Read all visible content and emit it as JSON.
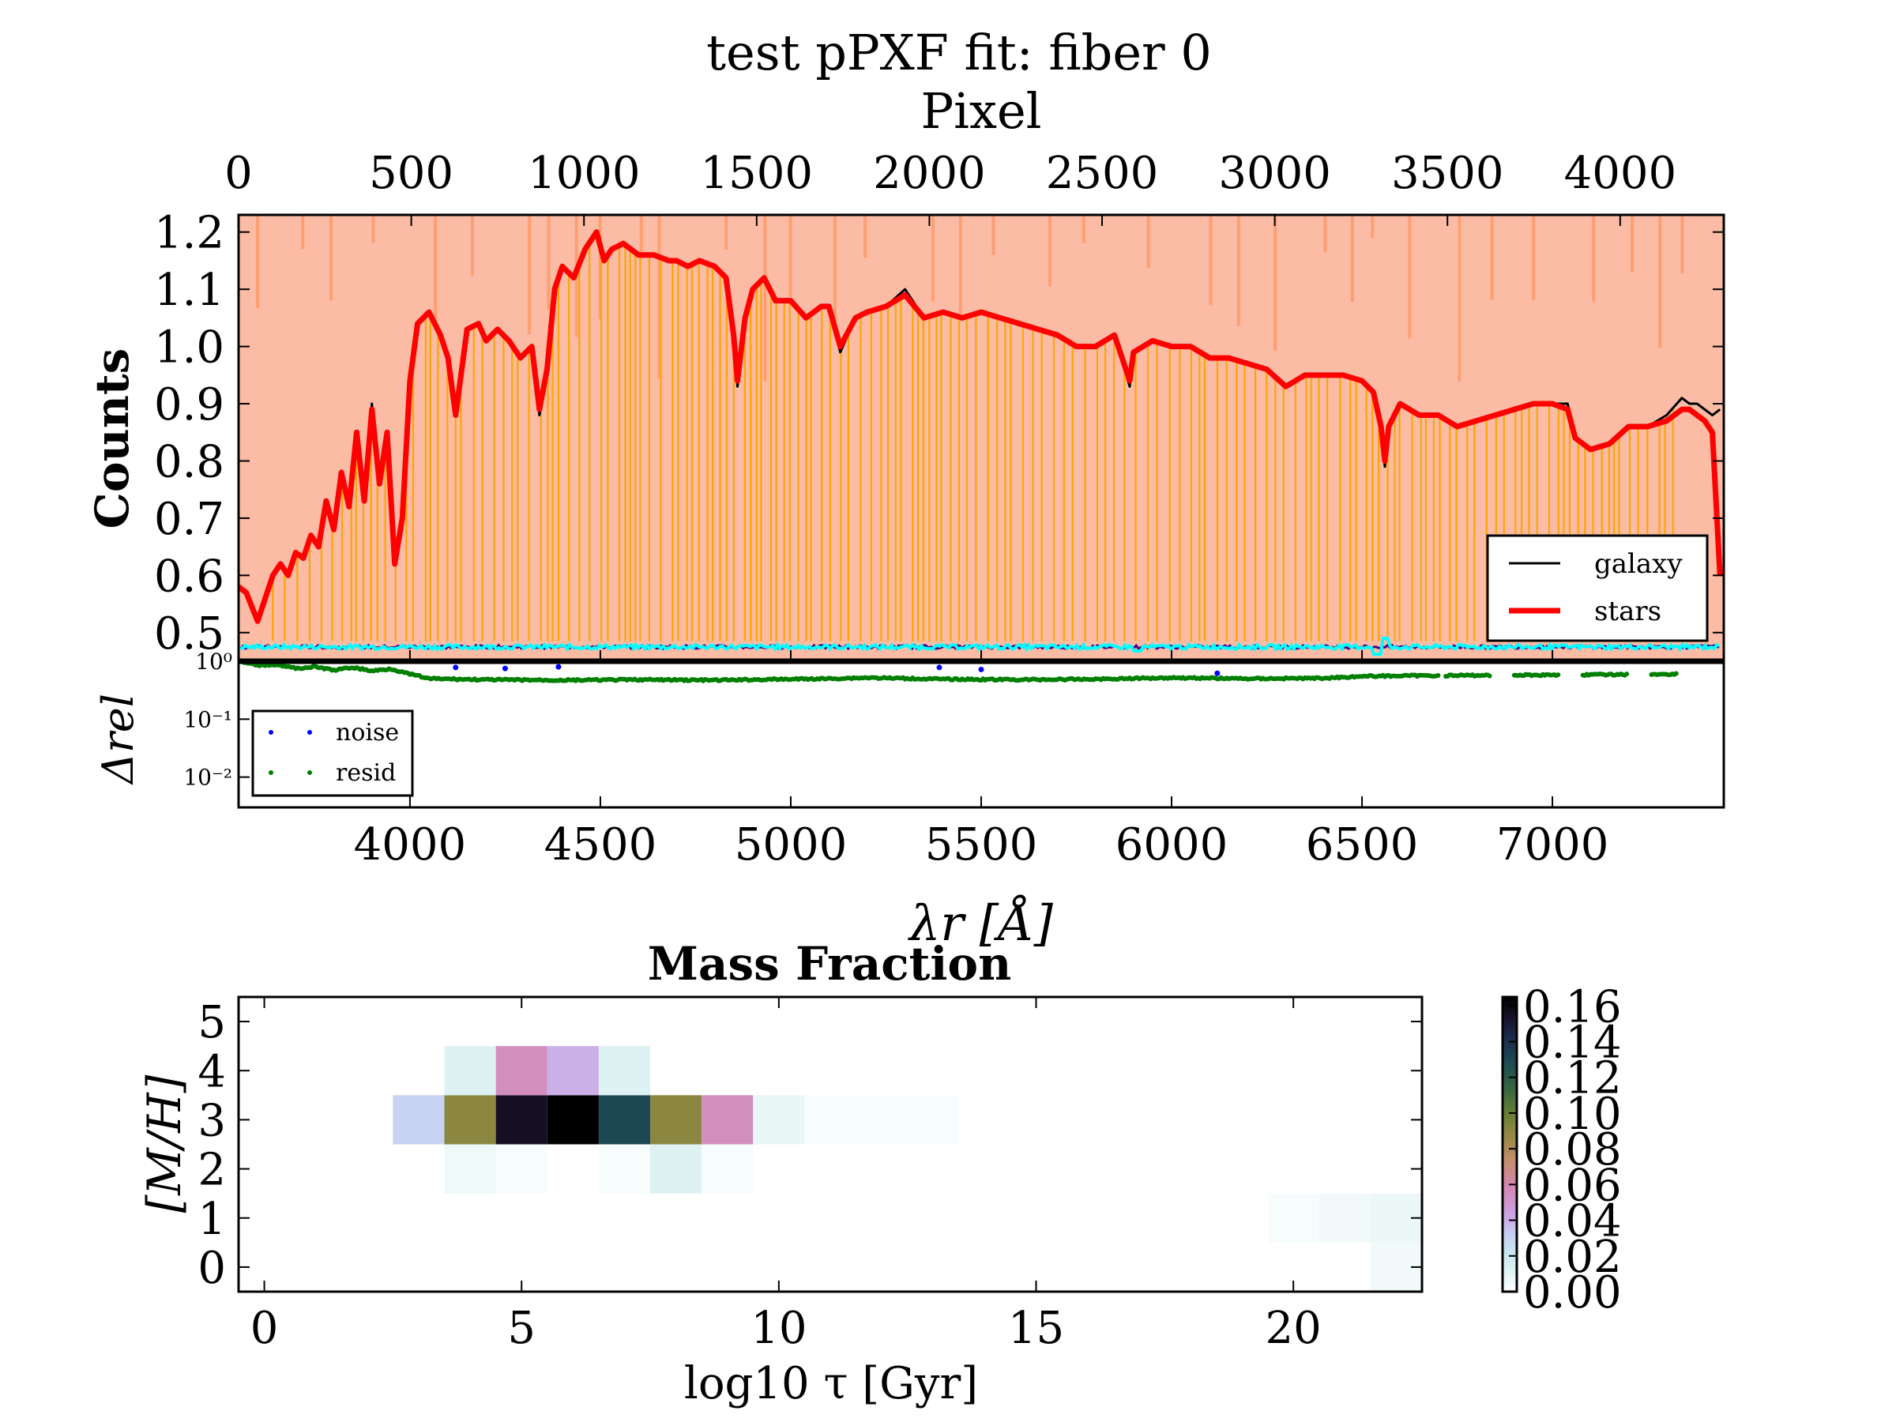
{
  "figure": {
    "title": "test pPXF fit: fiber 0"
  },
  "chart_data": [
    {
      "type": "line",
      "panel": "spectrum",
      "xlabel": "λr [Å]",
      "ylabel": "Counts",
      "top_xlabel": "Pixel",
      "xlim": [
        3550,
        7450
      ],
      "ylim": [
        0.45,
        1.23
      ],
      "top_xlim": [
        0,
        4300
      ],
      "x_ticks": [
        "4000",
        "4500",
        "5000",
        "5500",
        "6000",
        "6500",
        "7000"
      ],
      "y_ticks": [
        "0.5",
        "0.6",
        "0.7",
        "0.8",
        "0.9",
        "1.0",
        "1.1",
        "1.2"
      ],
      "top_ticks": [
        "0",
        "500",
        "1000",
        "1500",
        "2000",
        "2500",
        "3000",
        "3500",
        "4000"
      ],
      "legend_position": "lower-right",
      "background_color": "#fbbba4",
      "series": [
        {
          "name": "galaxy",
          "color": "#000000",
          "x": [
            3550,
            3570,
            3600,
            3620,
            3640,
            3660,
            3680,
            3700,
            3720,
            3740,
            3760,
            3780,
            3800,
            3820,
            3840,
            3860,
            3880,
            3900,
            3920,
            3940,
            3960,
            3980,
            4000,
            4020,
            4050,
            4080,
            4100,
            4120,
            4150,
            4180,
            4200,
            4230,
            4260,
            4290,
            4320,
            4340,
            4360,
            4380,
            4400,
            4430,
            4460,
            4490,
            4510,
            4530,
            4560,
            4600,
            4640,
            4680,
            4700,
            4730,
            4760,
            4800,
            4830,
            4850,
            4860,
            4880,
            4900,
            4930,
            4960,
            5000,
            5040,
            5080,
            5100,
            5130,
            5170,
            5200,
            5250,
            5300,
            5350,
            5400,
            5450,
            5500,
            5550,
            5600,
            5650,
            5700,
            5750,
            5800,
            5850,
            5890,
            5900,
            5950,
            6000,
            6050,
            6100,
            6150,
            6200,
            6250,
            6300,
            6350,
            6400,
            6450,
            6500,
            6530,
            6550,
            6560,
            6570,
            6600,
            6650,
            6700,
            6750,
            6800,
            6850,
            6900,
            6950,
            7000,
            7040,
            7060,
            7100,
            7150,
            7200,
            7250,
            7300,
            7340,
            7360,
            7380,
            7400,
            7420,
            7440
          ],
          "y": [
            0.58,
            0.57,
            0.52,
            0.56,
            0.6,
            0.62,
            0.6,
            0.64,
            0.63,
            0.67,
            0.65,
            0.73,
            0.68,
            0.78,
            0.72,
            0.85,
            0.73,
            0.9,
            0.76,
            0.85,
            0.62,
            0.7,
            0.94,
            1.04,
            1.06,
            1.02,
            0.98,
            0.88,
            1.03,
            1.04,
            1.01,
            1.03,
            1.01,
            0.98,
            1.0,
            0.88,
            0.96,
            1.1,
            1.14,
            1.12,
            1.17,
            1.2,
            1.15,
            1.17,
            1.18,
            1.16,
            1.16,
            1.15,
            1.15,
            1.14,
            1.15,
            1.14,
            1.12,
            1.02,
            0.93,
            1.05,
            1.1,
            1.12,
            1.08,
            1.08,
            1.05,
            1.07,
            1.07,
            0.99,
            1.05,
            1.06,
            1.07,
            1.1,
            1.05,
            1.06,
            1.05,
            1.06,
            1.05,
            1.04,
            1.03,
            1.02,
            1.0,
            1.0,
            1.02,
            0.93,
            0.99,
            1.01,
            1.0,
            1.0,
            0.98,
            0.98,
            0.97,
            0.96,
            0.93,
            0.95,
            0.95,
            0.95,
            0.94,
            0.92,
            0.86,
            0.79,
            0.86,
            0.9,
            0.88,
            0.88,
            0.86,
            0.87,
            0.88,
            0.89,
            0.9,
            0.9,
            0.9,
            0.84,
            0.82,
            0.83,
            0.86,
            0.86,
            0.88,
            0.91,
            0.9,
            0.9,
            0.89,
            0.88,
            0.89
          ]
        },
        {
          "name": "stars",
          "color": "#ff0000",
          "x": [
            3550,
            3570,
            3600,
            3620,
            3640,
            3660,
            3680,
            3700,
            3720,
            3740,
            3760,
            3780,
            3800,
            3820,
            3840,
            3860,
            3880,
            3900,
            3920,
            3940,
            3960,
            3980,
            4000,
            4020,
            4050,
            4080,
            4100,
            4120,
            4150,
            4180,
            4200,
            4230,
            4260,
            4290,
            4320,
            4340,
            4360,
            4380,
            4400,
            4430,
            4460,
            4490,
            4510,
            4530,
            4560,
            4600,
            4640,
            4680,
            4700,
            4730,
            4760,
            4800,
            4830,
            4850,
            4860,
            4880,
            4900,
            4930,
            4960,
            5000,
            5040,
            5080,
            5100,
            5130,
            5170,
            5200,
            5250,
            5300,
            5350,
            5400,
            5450,
            5500,
            5550,
            5600,
            5650,
            5700,
            5750,
            5800,
            5850,
            5890,
            5900,
            5950,
            6000,
            6050,
            6100,
            6150,
            6200,
            6250,
            6300,
            6350,
            6400,
            6450,
            6500,
            6530,
            6550,
            6560,
            6570,
            6600,
            6650,
            6700,
            6750,
            6800,
            6850,
            6900,
            6950,
            7000,
            7040,
            7060,
            7100,
            7150,
            7200,
            7250,
            7300,
            7340,
            7360,
            7380,
            7400,
            7420,
            7440
          ],
          "y": [
            0.58,
            0.57,
            0.52,
            0.56,
            0.6,
            0.62,
            0.6,
            0.64,
            0.63,
            0.67,
            0.65,
            0.73,
            0.68,
            0.78,
            0.72,
            0.85,
            0.73,
            0.89,
            0.76,
            0.85,
            0.62,
            0.7,
            0.94,
            1.04,
            1.06,
            1.02,
            0.98,
            0.88,
            1.03,
            1.04,
            1.01,
            1.03,
            1.01,
            0.98,
            1.0,
            0.89,
            0.96,
            1.1,
            1.14,
            1.12,
            1.17,
            1.2,
            1.15,
            1.17,
            1.18,
            1.16,
            1.16,
            1.15,
            1.15,
            1.14,
            1.15,
            1.14,
            1.12,
            1.02,
            0.94,
            1.05,
            1.1,
            1.12,
            1.08,
            1.08,
            1.05,
            1.07,
            1.07,
            1.0,
            1.05,
            1.06,
            1.07,
            1.09,
            1.05,
            1.06,
            1.05,
            1.06,
            1.05,
            1.04,
            1.03,
            1.02,
            1.0,
            1.0,
            1.02,
            0.94,
            0.99,
            1.01,
            1.0,
            1.0,
            0.98,
            0.98,
            0.97,
            0.96,
            0.93,
            0.95,
            0.95,
            0.95,
            0.94,
            0.92,
            0.86,
            0.8,
            0.86,
            0.9,
            0.88,
            0.88,
            0.86,
            0.87,
            0.88,
            0.89,
            0.9,
            0.9,
            0.89,
            0.84,
            0.82,
            0.83,
            0.86,
            0.86,
            0.87,
            0.89,
            0.89,
            0.88,
            0.87,
            0.85,
            0.6
          ]
        }
      ],
      "residual_level": 0.475,
      "residual_colors": [
        "#00ffff",
        "#4b0082"
      ],
      "residual_dips": [
        {
          "x": 5910,
          "y": 0.468
        },
        {
          "x": 6540,
          "y": 0.462
        },
        {
          "x": 6560,
          "y": 0.49
        }
      ],
      "masked_lines_color": "#ffa500",
      "masked_regions_color": "#ff9966"
    },
    {
      "type": "scatter",
      "panel": "relative-difference",
      "ylabel": "Δrel",
      "yscale": "log",
      "xlim": [
        3550,
        7450
      ],
      "ylim": [
        0.003,
        1.0
      ],
      "y_ticks": [
        "10⁰",
        "10⁻¹",
        "10⁻²"
      ],
      "legend_position": "lower-left",
      "series": [
        {
          "name": "noise",
          "color": "#0000ff",
          "x": [
            4120,
            4250,
            4390,
            5390,
            5500,
            6120
          ],
          "y": [
            0.78,
            0.75,
            0.8,
            0.78,
            0.72,
            0.62
          ]
        },
        {
          "name": "resid",
          "color": "#007f00",
          "x": [
            3560,
            3600,
            3650,
            3700,
            3750,
            3800,
            3850,
            3900,
            3950,
            3990,
            4050,
            4200,
            4400,
            4600,
            4800,
            5000,
            5100,
            5200,
            5400,
            5600,
            5800,
            6000,
            6200,
            6400,
            6500,
            6600,
            6800,
            7000,
            7200,
            7330
          ],
          "y": [
            0.95,
            0.85,
            0.88,
            0.75,
            0.8,
            0.7,
            0.78,
            0.68,
            0.74,
            0.62,
            0.5,
            0.48,
            0.47,
            0.48,
            0.47,
            0.49,
            0.5,
            0.52,
            0.49,
            0.48,
            0.49,
            0.52,
            0.5,
            0.51,
            0.55,
            0.56,
            0.57,
            0.58,
            0.59,
            0.6
          ]
        }
      ]
    },
    {
      "type": "heatmap",
      "panel": "mass-fraction",
      "title": "Mass Fraction",
      "xlabel": "log10 τ [Gyr]",
      "ylabel": "[M/H]",
      "xlim": [
        -0.5,
        22.5
      ],
      "ylim": [
        -0.5,
        5.5
      ],
      "x_ticks": [
        "0",
        "5",
        "10",
        "15",
        "20"
      ],
      "y_ticks": [
        "0",
        "1",
        "2",
        "3",
        "4",
        "5"
      ],
      "colorbar_ticks": [
        "0.00",
        "0.02",
        "0.04",
        "0.06",
        "0.08",
        "0.10",
        "0.12",
        "0.14",
        "0.16"
      ],
      "colorbar_range": [
        0,
        0.165
      ],
      "colormap": "cubehelix_r",
      "cells": [
        {
          "x": 3,
          "y": 3,
          "v": 0.03
        },
        {
          "x": 4,
          "y": 3,
          "v": 0.09
        },
        {
          "x": 5,
          "y": 3,
          "v": 0.155
        },
        {
          "x": 6,
          "y": 3,
          "v": 0.165
        },
        {
          "x": 7,
          "y": 3,
          "v": 0.13
        },
        {
          "x": 8,
          "y": 3,
          "v": 0.09
        },
        {
          "x": 9,
          "y": 3,
          "v": 0.055
        },
        {
          "x": 10,
          "y": 3,
          "v": 0.008
        },
        {
          "x": 11,
          "y": 3,
          "v": 0.003
        },
        {
          "x": 12,
          "y": 3,
          "v": 0.003
        },
        {
          "x": 13,
          "y": 3,
          "v": 0.003
        },
        {
          "x": 4,
          "y": 4,
          "v": 0.012
        },
        {
          "x": 5,
          "y": 4,
          "v": 0.055
        },
        {
          "x": 6,
          "y": 4,
          "v": 0.04
        },
        {
          "x": 7,
          "y": 4,
          "v": 0.012
        },
        {
          "x": 4,
          "y": 2,
          "v": 0.006
        },
        {
          "x": 5,
          "y": 2,
          "v": 0.003
        },
        {
          "x": 7,
          "y": 2,
          "v": 0.003
        },
        {
          "x": 8,
          "y": 2,
          "v": 0.012
        },
        {
          "x": 9,
          "y": 2,
          "v": 0.003
        },
        {
          "x": 20,
          "y": 1,
          "v": 0.003
        },
        {
          "x": 21,
          "y": 1,
          "v": 0.005
        },
        {
          "x": 22,
          "y": 1,
          "v": 0.007
        },
        {
          "x": 22,
          "y": 0,
          "v": 0.005
        }
      ]
    }
  ]
}
